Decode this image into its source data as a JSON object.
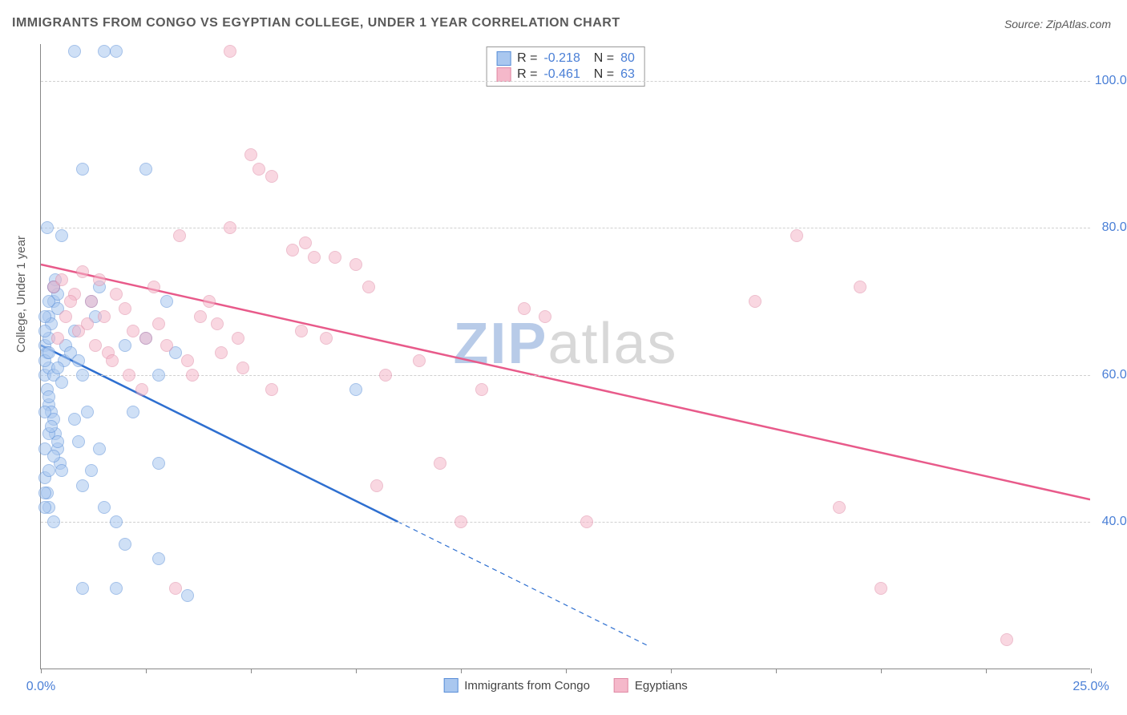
{
  "title": "IMMIGRANTS FROM CONGO VS EGYPTIAN COLLEGE, UNDER 1 YEAR CORRELATION CHART",
  "source_label": "Source: ZipAtlas.com",
  "ylabel": "College, Under 1 year",
  "watermark": {
    "part1": "ZIP",
    "part2": "atlas"
  },
  "chart": {
    "type": "scatter",
    "background_color": "#ffffff",
    "grid_color": "#d0d0d0",
    "axis_color": "#888888",
    "text_color": "#5a5a5a",
    "value_color": "#4a7fd6",
    "xlim": [
      0,
      25
    ],
    "ylim": [
      20,
      105
    ],
    "x_ticks": [
      0,
      2.5,
      5,
      7.5,
      10,
      12.5,
      15,
      17.5,
      20,
      22.5,
      25
    ],
    "x_tick_labels": {
      "0": "0.0%",
      "25": "25.0%"
    },
    "y_ticks": [
      40,
      60,
      80,
      100
    ],
    "y_tick_labels": [
      "40.0%",
      "60.0%",
      "80.0%",
      "100.0%"
    ],
    "marker_radius": 8,
    "marker_stroke_width": 1.5,
    "series": [
      {
        "name": "Immigrants from Congo",
        "fill_color": "#a9c7ef",
        "fill_opacity": 0.55,
        "stroke_color": "#5a8fd8",
        "R": "-0.218",
        "N": "80",
        "trend": {
          "x1": 0,
          "y1": 64,
          "x2_solid": 8.5,
          "y2_solid": 40,
          "x2_dash": 14.5,
          "y2_dash": 23,
          "line_color": "#2e6fd0",
          "line_width": 2.5
        },
        "points": [
          [
            0.1,
            64
          ],
          [
            0.15,
            63
          ],
          [
            0.2,
            65
          ],
          [
            0.2,
            68
          ],
          [
            0.25,
            67
          ],
          [
            0.3,
            70
          ],
          [
            0.3,
            72
          ],
          [
            0.35,
            73
          ],
          [
            0.4,
            71
          ],
          [
            0.4,
            69
          ],
          [
            0.1,
            60
          ],
          [
            0.15,
            58
          ],
          [
            0.2,
            56
          ],
          [
            0.25,
            55
          ],
          [
            0.3,
            54
          ],
          [
            0.35,
            52
          ],
          [
            0.4,
            50
          ],
          [
            0.45,
            48
          ],
          [
            0.5,
            47
          ],
          [
            0.55,
            62
          ],
          [
            0.15,
            44
          ],
          [
            0.2,
            42
          ],
          [
            0.3,
            40
          ],
          [
            0.1,
            46
          ],
          [
            0.1,
            66
          ],
          [
            0.2,
            61
          ],
          [
            0.6,
            64
          ],
          [
            0.7,
            63
          ],
          [
            0.8,
            66
          ],
          [
            0.9,
            62
          ],
          [
            1.0,
            60
          ],
          [
            1.1,
            55
          ],
          [
            1.2,
            70
          ],
          [
            1.3,
            68
          ],
          [
            1.4,
            72
          ],
          [
            0.8,
            104
          ],
          [
            1.5,
            104
          ],
          [
            1.8,
            104
          ],
          [
            0.15,
            80
          ],
          [
            1.0,
            88
          ],
          [
            0.5,
            79
          ],
          [
            1.5,
            42
          ],
          [
            1.8,
            40
          ],
          [
            2.0,
            37
          ],
          [
            1.0,
            31
          ],
          [
            1.8,
            31
          ],
          [
            2.8,
            35
          ],
          [
            3.5,
            30
          ],
          [
            2.0,
            64
          ],
          [
            2.5,
            65
          ],
          [
            2.8,
            60
          ],
          [
            3.0,
            70
          ],
          [
            3.2,
            63
          ],
          [
            7.5,
            58
          ],
          [
            2.5,
            88
          ],
          [
            0.1,
            50
          ],
          [
            0.2,
            52
          ],
          [
            0.3,
            49
          ],
          [
            0.4,
            51
          ],
          [
            0.1,
            62
          ],
          [
            0.2,
            63
          ],
          [
            0.3,
            60
          ],
          [
            0.4,
            61
          ],
          [
            0.5,
            59
          ],
          [
            0.1,
            68
          ],
          [
            0.2,
            70
          ],
          [
            0.3,
            72
          ],
          [
            0.1,
            44
          ],
          [
            0.2,
            47
          ],
          [
            0.1,
            55
          ],
          [
            0.2,
            57
          ],
          [
            0.1,
            42
          ],
          [
            0.25,
            53
          ],
          [
            0.8,
            54
          ],
          [
            0.9,
            51
          ],
          [
            1.0,
            45
          ],
          [
            1.2,
            47
          ],
          [
            1.4,
            50
          ],
          [
            2.2,
            55
          ],
          [
            2.8,
            48
          ]
        ]
      },
      {
        "name": "Egyptians",
        "fill_color": "#f5b8ca",
        "fill_opacity": 0.55,
        "stroke_color": "#e08aa5",
        "R": "-0.461",
        "N": "63",
        "trend": {
          "x1": 0,
          "y1": 75,
          "x2_solid": 25,
          "y2_solid": 43,
          "line_color": "#e85a8a",
          "line_width": 2.5
        },
        "points": [
          [
            0.3,
            72
          ],
          [
            0.5,
            73
          ],
          [
            0.8,
            71
          ],
          [
            1.0,
            74
          ],
          [
            1.2,
            70
          ],
          [
            1.5,
            68
          ],
          [
            1.8,
            71
          ],
          [
            2.0,
            69
          ],
          [
            2.2,
            66
          ],
          [
            2.5,
            65
          ],
          [
            2.8,
            67
          ],
          [
            3.0,
            64
          ],
          [
            3.3,
            79
          ],
          [
            3.5,
            62
          ],
          [
            3.8,
            68
          ],
          [
            4.0,
            70
          ],
          [
            4.3,
            63
          ],
          [
            4.5,
            80
          ],
          [
            4.8,
            61
          ],
          [
            4.5,
            104
          ],
          [
            5.0,
            90
          ],
          [
            5.2,
            88
          ],
          [
            5.5,
            87
          ],
          [
            6.0,
            77
          ],
          [
            6.3,
            78
          ],
          [
            6.5,
            76
          ],
          [
            6.8,
            65
          ],
          [
            7.0,
            76
          ],
          [
            7.5,
            75
          ],
          [
            7.8,
            72
          ],
          [
            8.0,
            45
          ],
          [
            8.2,
            60
          ],
          [
            9.0,
            62
          ],
          [
            9.5,
            48
          ],
          [
            10.0,
            40
          ],
          [
            10.5,
            58
          ],
          [
            11.5,
            69
          ],
          [
            12.0,
            68
          ],
          [
            13.0,
            40
          ],
          [
            17.0,
            70
          ],
          [
            18.0,
            79
          ],
          [
            19.0,
            42
          ],
          [
            19.5,
            72
          ],
          [
            20.0,
            31
          ],
          [
            23.0,
            24
          ],
          [
            0.6,
            68
          ],
          [
            0.9,
            66
          ],
          [
            1.3,
            64
          ],
          [
            1.6,
            63
          ],
          [
            2.1,
            60
          ],
          [
            3.2,
            31
          ],
          [
            5.5,
            58
          ],
          [
            2.7,
            72
          ],
          [
            1.1,
            67
          ],
          [
            1.4,
            73
          ],
          [
            1.7,
            62
          ],
          [
            0.4,
            65
          ],
          [
            0.7,
            70
          ],
          [
            2.4,
            58
          ],
          [
            4.2,
            67
          ],
          [
            4.7,
            65
          ],
          [
            3.6,
            60
          ],
          [
            6.2,
            66
          ]
        ]
      }
    ],
    "bottom_legend": [
      {
        "label": "Immigrants from Congo",
        "fill": "#a9c7ef",
        "stroke": "#5a8fd8"
      },
      {
        "label": "Egyptians",
        "fill": "#f5b8ca",
        "stroke": "#e08aa5"
      }
    ]
  }
}
